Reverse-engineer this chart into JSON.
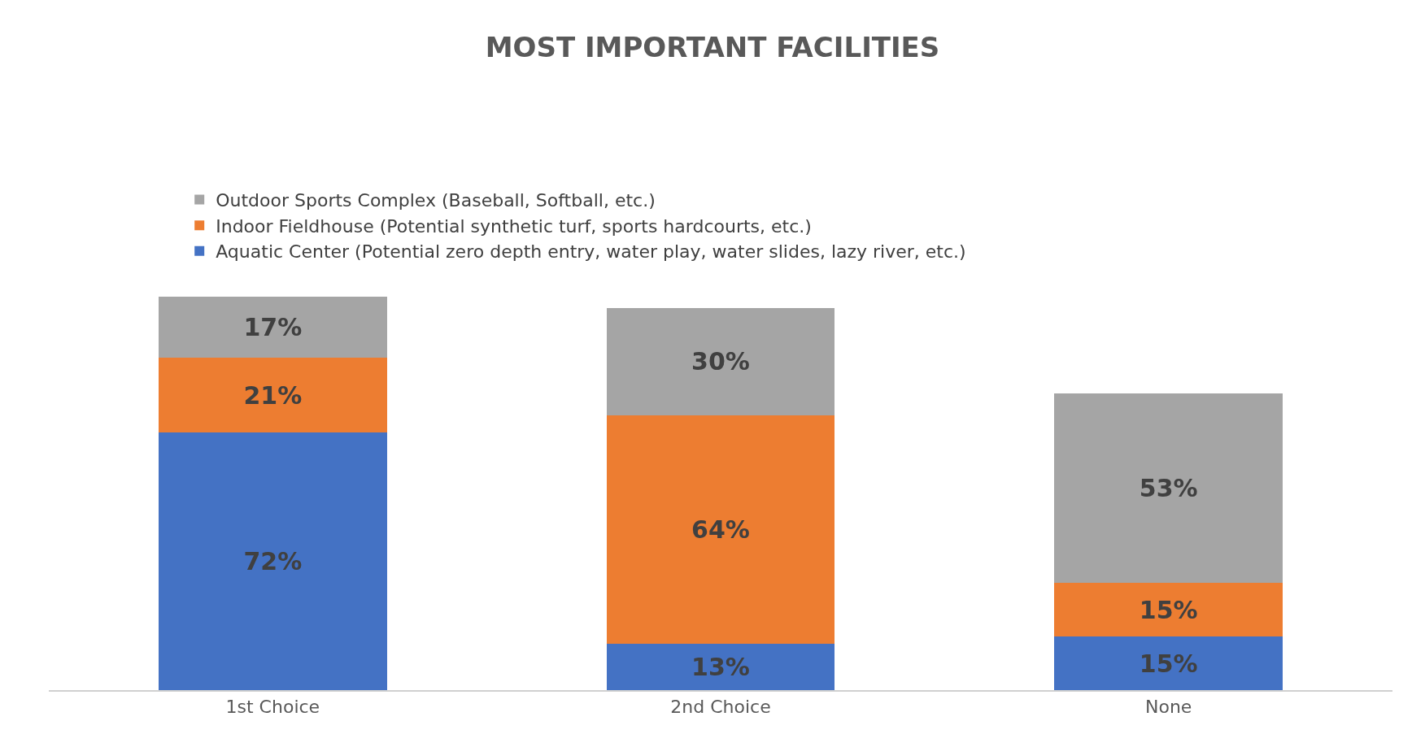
{
  "chart_data": {
    "type": "bar",
    "title": "MOST IMPORTANT FACILITIES",
    "categories": [
      "1st Choice",
      "2nd Choice",
      "None"
    ],
    "stacked": true,
    "legend": "top",
    "series": [
      {
        "name": "Aquatic Center (Potential zero depth entry, water play, water slides, lazy river, etc.)",
        "color": "#4472c4",
        "values": [
          72,
          13,
          15
        ],
        "value_labels": [
          "72%",
          "13%",
          "15%"
        ]
      },
      {
        "name": "Indoor Fieldhouse (Potential synthetic turf, sports hardcourts, etc.)",
        "color": "#ed7d31",
        "values": [
          21,
          64,
          15
        ],
        "value_labels": [
          "21%",
          "64%",
          "15%"
        ]
      },
      {
        "name": "Outdoor Sports Complex (Baseball, Softball, etc.)",
        "color": "#a5a5a5",
        "values": [
          17,
          30,
          53
        ],
        "value_labels": [
          "17%",
          "30%",
          "53%"
        ]
      }
    ]
  }
}
